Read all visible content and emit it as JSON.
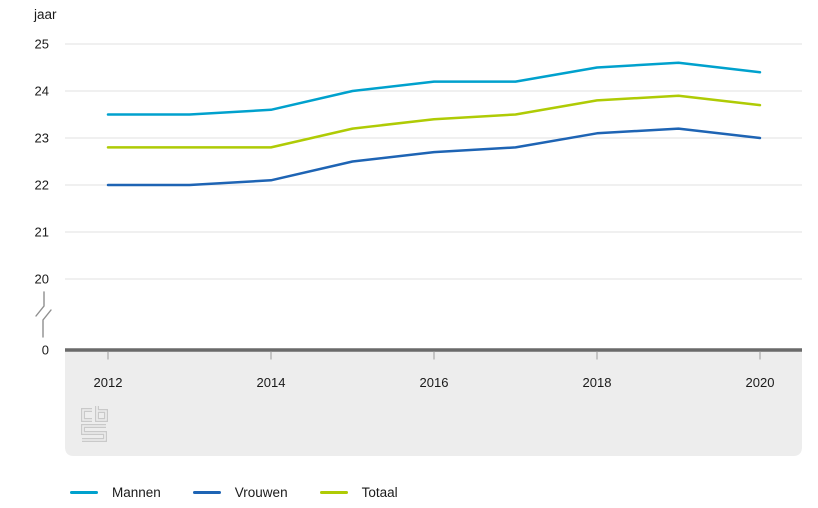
{
  "chart_data": {
    "type": "line",
    "title": "",
    "ylabel": "jaar",
    "xlabel": "",
    "x": [
      2012,
      2013,
      2014,
      2015,
      2016,
      2017,
      2018,
      2019,
      2020
    ],
    "x_tick_labels": [
      "2012",
      "2014",
      "2016",
      "2018",
      "2020"
    ],
    "y_ticks": [
      25,
      24,
      23,
      22,
      21,
      20
    ],
    "y_zero_label": "0",
    "axis_break": true,
    "ylim_display": [
      20,
      25
    ],
    "grid": true,
    "legend_position": "bottom",
    "series": [
      {
        "name": "Mannen",
        "color": "#00a1cd",
        "values": [
          23.5,
          23.5,
          23.6,
          24.0,
          24.2,
          24.2,
          24.5,
          24.6,
          24.4
        ]
      },
      {
        "name": "Vrouwen",
        "color": "#1e64b4",
        "values": [
          22.0,
          22.0,
          22.1,
          22.5,
          22.7,
          22.8,
          23.1,
          23.2,
          23.0
        ]
      },
      {
        "name": "Totaal",
        "color": "#afcb05",
        "values": [
          22.8,
          22.8,
          22.8,
          23.2,
          23.4,
          23.5,
          23.8,
          23.9,
          23.7
        ]
      }
    ]
  },
  "style_colors": {
    "gridline": "#e2e2e2",
    "axis_line": "#6a6a6a",
    "band_background": "#ededed",
    "tick_mark": "#b3b3b3",
    "text": "#1a1a1a",
    "logo": "#c9c9c9"
  },
  "branding": {
    "logo_name": "cbs-logo"
  }
}
